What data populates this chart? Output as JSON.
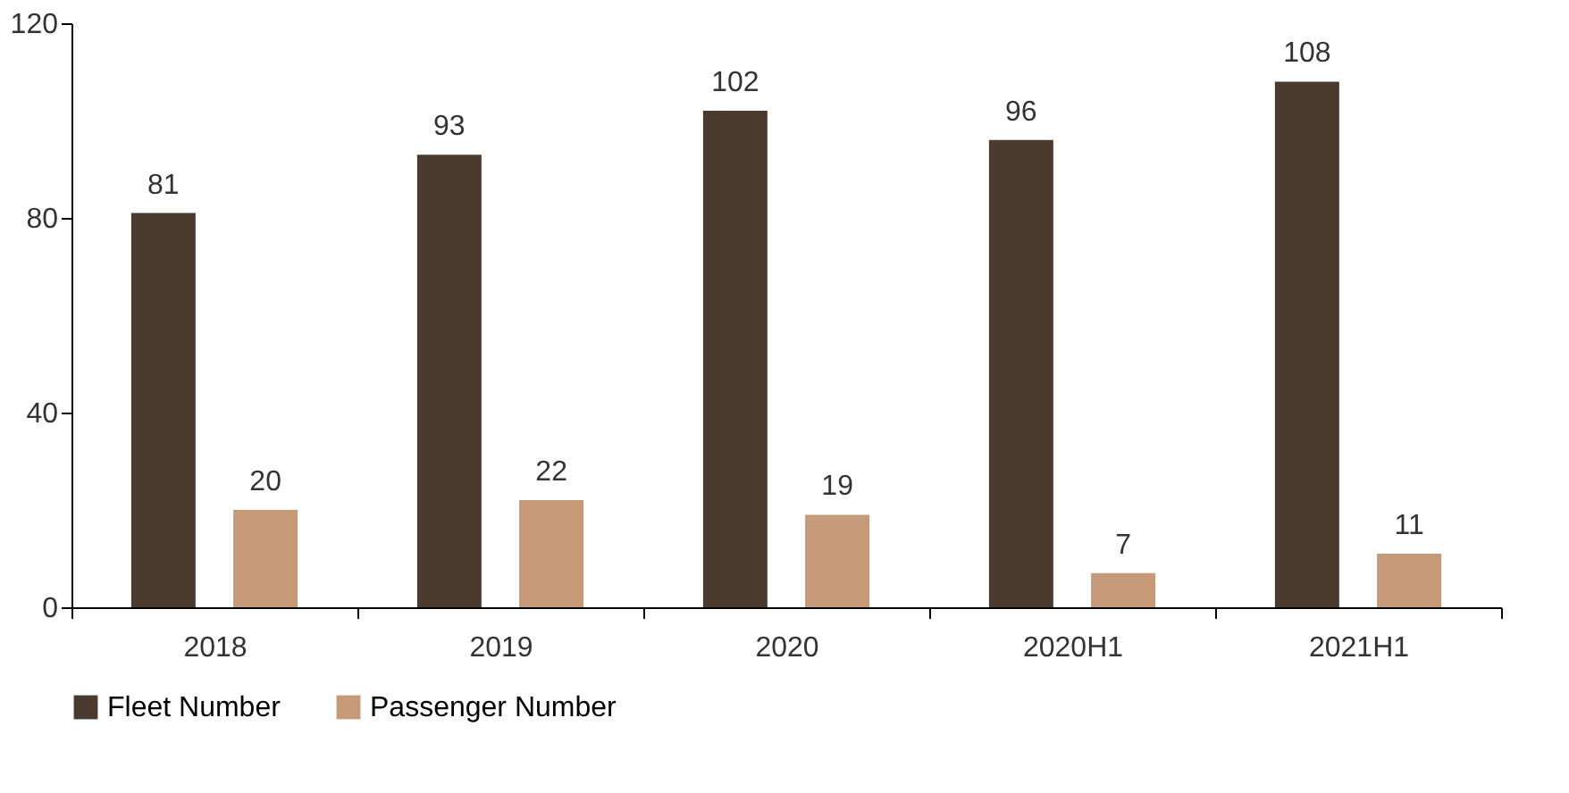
{
  "chart_data": {
    "type": "bar",
    "categories": [
      "2018",
      "2019",
      "2020",
      "2020H1",
      "2021H1"
    ],
    "series": [
      {
        "name": "Fleet Number",
        "color": "#4b3b2f",
        "values": [
          81,
          93,
          102,
          96,
          108
        ]
      },
      {
        "name": "Passenger Number",
        "color": "#c49a78",
        "values": [
          20,
          22,
          19,
          7,
          11
        ]
      }
    ],
    "ylim": [
      0,
      120
    ],
    "yticks": [
      0,
      40,
      80,
      120
    ],
    "grid": false,
    "legend": "bottom",
    "data_labels": true
  }
}
